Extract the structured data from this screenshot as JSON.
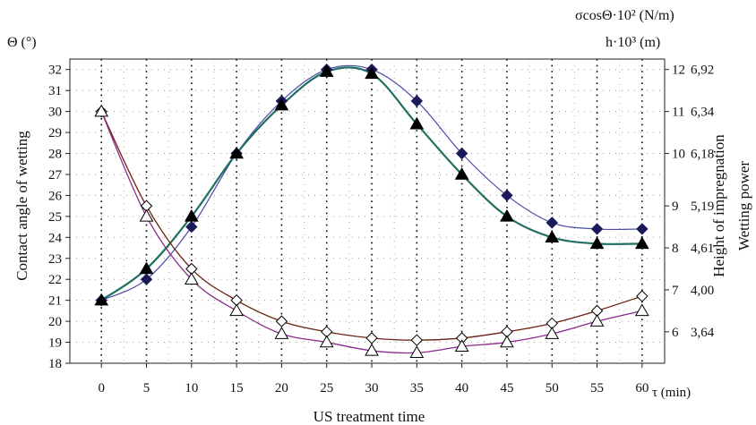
{
  "chart_data": {
    "type": "line",
    "title": "",
    "xlabel": "US treatment time",
    "x_axis_unit": "τ (min)",
    "ylabel_left": "Contact angle of wetting",
    "y_left_unit": "Θ (°)",
    "ylabel_right_inner": "Height of impregnation",
    "y_right_inner_unit": "h·10³ (m)",
    "ylabel_right_outer": "Wetting power",
    "y_right_outer_unit": "σcosΘ·10² (N/m)",
    "x": [
      0,
      5,
      10,
      15,
      20,
      25,
      30,
      35,
      40,
      45,
      50,
      55,
      60
    ],
    "xlim": [
      -3.5,
      62.5
    ],
    "ylim": [
      18,
      32.5
    ],
    "x_ticks": [
      "0",
      "5",
      "10",
      "15",
      "20",
      "25",
      "30",
      "35",
      "40",
      "45",
      "50",
      "55",
      "60"
    ],
    "y_ticks_left": [
      18,
      19,
      20,
      21,
      22,
      23,
      24,
      25,
      26,
      27,
      28,
      29,
      30,
      31,
      32
    ],
    "right_inner_ticks": [
      {
        "label": "12",
        "at": 32
      },
      {
        "label": "11",
        "at": 30
      },
      {
        "label": "10",
        "at": 28
      },
      {
        "label": "9",
        "at": 25.5
      },
      {
        "label": "8",
        "at": 23.5
      },
      {
        "label": "7",
        "at": 21.5
      },
      {
        "label": "6",
        "at": 19.5
      }
    ],
    "right_outer_ticks": [
      {
        "label": "6,92",
        "at": 32
      },
      {
        "label": "6,34",
        "at": 30
      },
      {
        "label": "6,18",
        "at": 28
      },
      {
        "label": "5,19",
        "at": 25.5
      },
      {
        "label": "4,61",
        "at": 23.5
      },
      {
        "label": "4,00",
        "at": 21.5
      },
      {
        "label": "3,64",
        "at": 19.5
      }
    ],
    "grid": "dotted vertical and horizontal",
    "legend": "none",
    "series": [
      {
        "marker": "filled-diamond",
        "color": "#4a4aa8",
        "marker_color": "#1a1a5a",
        "values": [
          21,
          22,
          24.5,
          28,
          30.5,
          32,
          32,
          30.5,
          28,
          26,
          24.7,
          24.4,
          24.4
        ]
      },
      {
        "marker": "filled-triangle",
        "color": "#1f7060",
        "marker_color": "#000000",
        "values": [
          21,
          22.5,
          25,
          28,
          30.3,
          31.9,
          31.8,
          29.4,
          27,
          25,
          24,
          23.7,
          23.7
        ]
      },
      {
        "marker": "open-diamond",
        "color": "#6b1f10",
        "marker_color": "#000000",
        "values": [
          30,
          25.5,
          22.5,
          21,
          20,
          19.5,
          19.2,
          19.1,
          19.2,
          19.5,
          19.9,
          20.5,
          21.2
        ]
      },
      {
        "marker": "open-triangle",
        "color": "#8a2a8a",
        "marker_color": "#000000",
        "values": [
          30,
          25,
          22,
          20.5,
          19.4,
          19,
          18.6,
          18.5,
          18.8,
          19,
          19.4,
          20,
          20.5
        ]
      }
    ]
  }
}
